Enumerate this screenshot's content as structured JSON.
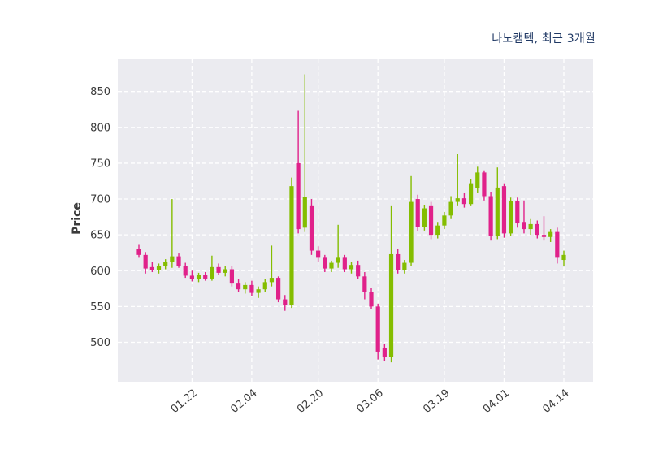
{
  "chart_data": {
    "type": "candlestick",
    "title": "나노캠텍, 최근 3개월",
    "ylabel": "Price",
    "xlabel": "",
    "ylim": [
      445,
      895
    ],
    "yticks": [
      500,
      550,
      600,
      650,
      700,
      750,
      800,
      850
    ],
    "xticks": [
      {
        "i": 8,
        "label": "01.22"
      },
      {
        "i": 17,
        "label": "02.04"
      },
      {
        "i": 27,
        "label": "02.20"
      },
      {
        "i": 36,
        "label": "03.06"
      },
      {
        "i": 46,
        "label": "03.19"
      },
      {
        "i": 55,
        "label": "04.01"
      },
      {
        "i": 64,
        "label": "04.14"
      }
    ],
    "grid": "dashed-white-on-gray",
    "legend": "none",
    "colors": {
      "up": "#84bd00",
      "down": "#e0218a",
      "plot_bg": "#ebebf0",
      "grid": "#ffffff",
      "title": "#1f3864",
      "tick": "#3b3b3b"
    },
    "candle_format": [
      "open",
      "high",
      "low",
      "close"
    ],
    "candles": [
      [
        630,
        636,
        618,
        622
      ],
      [
        622,
        626,
        596,
        603
      ],
      [
        605,
        612,
        598,
        601
      ],
      [
        601,
        610,
        596,
        607
      ],
      [
        607,
        616,
        602,
        612
      ],
      [
        612,
        700,
        604,
        620
      ],
      [
        620,
        624,
        604,
        607
      ],
      [
        607,
        611,
        590,
        593
      ],
      [
        593,
        600,
        585,
        588
      ],
      [
        588,
        597,
        584,
        594
      ],
      [
        594,
        598,
        586,
        589
      ],
      [
        589,
        621,
        586,
        605
      ],
      [
        605,
        610,
        594,
        597
      ],
      [
        597,
        606,
        592,
        602
      ],
      [
        602,
        606,
        578,
        582
      ],
      [
        582,
        588,
        570,
        574
      ],
      [
        574,
        584,
        568,
        580
      ],
      [
        580,
        586,
        565,
        569
      ],
      [
        569,
        578,
        562,
        574
      ],
      [
        574,
        588,
        570,
        584
      ],
      [
        584,
        635,
        578,
        590
      ],
      [
        590,
        592,
        556,
        560
      ],
      [
        560,
        566,
        544,
        552
      ],
      [
        552,
        730,
        548,
        718
      ],
      [
        750,
        823,
        652,
        658
      ],
      [
        660,
        874,
        654,
        703
      ],
      [
        690,
        700,
        622,
        628
      ],
      [
        628,
        634,
        612,
        618
      ],
      [
        618,
        622,
        598,
        603
      ],
      [
        603,
        614,
        598,
        611
      ],
      [
        611,
        664,
        604,
        618
      ],
      [
        618,
        622,
        598,
        602
      ],
      [
        602,
        612,
        596,
        608
      ],
      [
        608,
        614,
        588,
        592
      ],
      [
        592,
        598,
        560,
        570
      ],
      [
        570,
        576,
        546,
        550
      ],
      [
        550,
        554,
        476,
        487
      ],
      [
        492,
        498,
        474,
        479
      ],
      [
        480,
        690,
        472,
        623
      ],
      [
        623,
        630,
        596,
        601
      ],
      [
        601,
        615,
        596,
        611
      ],
      [
        611,
        732,
        606,
        696
      ],
      [
        700,
        706,
        655,
        661
      ],
      [
        661,
        692,
        656,
        687
      ],
      [
        690,
        696,
        644,
        650
      ],
      [
        650,
        668,
        645,
        663
      ],
      [
        663,
        682,
        658,
        677
      ],
      [
        677,
        704,
        672,
        696
      ],
      [
        696,
        763,
        690,
        701
      ],
      [
        701,
        708,
        688,
        693
      ],
      [
        693,
        728,
        690,
        722
      ],
      [
        715,
        745,
        708,
        737
      ],
      [
        737,
        740,
        698,
        704
      ],
      [
        704,
        710,
        642,
        648
      ],
      [
        648,
        744,
        644,
        716
      ],
      [
        718,
        722,
        646,
        652
      ],
      [
        652,
        702,
        648,
        697
      ],
      [
        697,
        702,
        660,
        666
      ],
      [
        668,
        698,
        652,
        658
      ],
      [
        658,
        672,
        650,
        665
      ],
      [
        665,
        670,
        645,
        650
      ],
      [
        650,
        676,
        642,
        647
      ],
      [
        647,
        658,
        640,
        654
      ],
      [
        654,
        660,
        610,
        618
      ],
      [
        615,
        628,
        606,
        622
      ]
    ]
  }
}
